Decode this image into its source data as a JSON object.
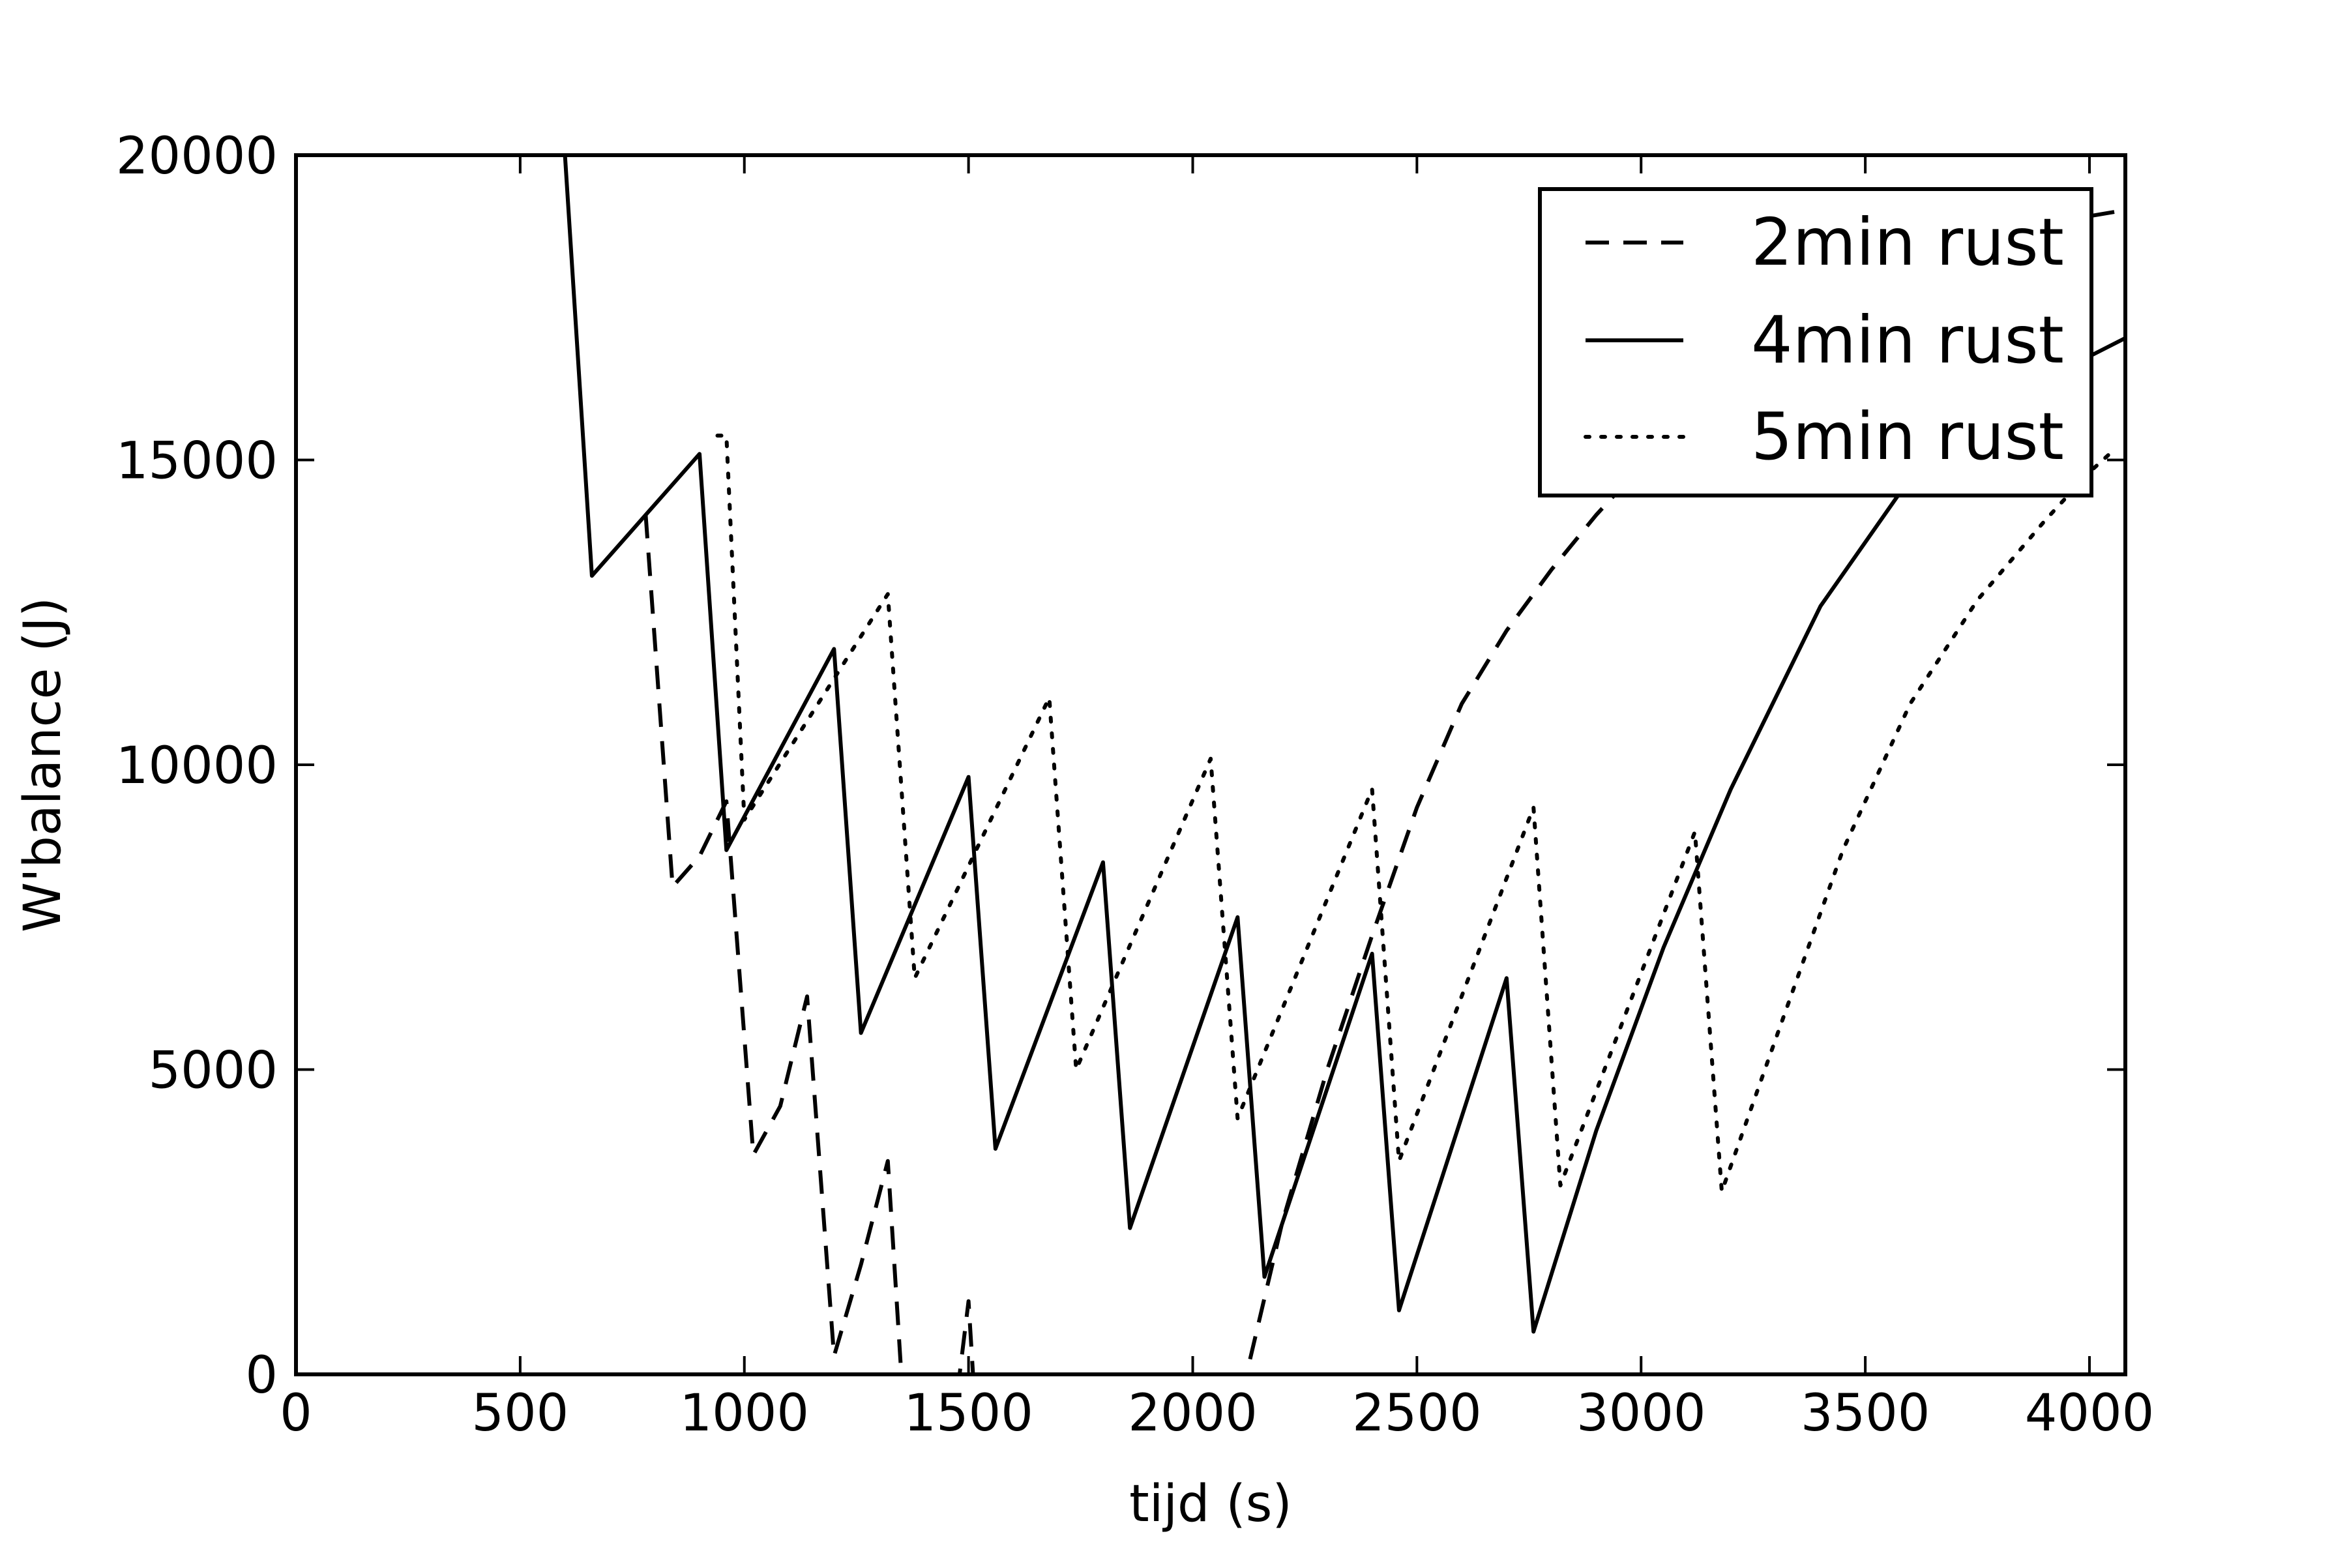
{
  "chart_data": {
    "type": "line",
    "title": "",
    "xlabel": "tijd (s)",
    "ylabel": "W'balance (J)",
    "xlim": [
      0,
      4080
    ],
    "ylim": [
      0,
      20000
    ],
    "xticks": [
      0,
      500,
      1000,
      1500,
      2000,
      2500,
      3000,
      3500,
      4000
    ],
    "yticks": [
      0,
      5000,
      10000,
      15000,
      20000
    ],
    "xtick_labels": [
      "0",
      "500",
      "1000",
      "1500",
      "2000",
      "2500",
      "3000",
      "3500",
      "4000"
    ],
    "ytick_labels": [
      "0",
      "5000",
      "10000",
      "15000",
      "20000"
    ],
    "grid": false,
    "legend_position": "top-right",
    "series": [
      {
        "name": "2min rust",
        "style": "dashed",
        "color": "#000000",
        "points": [
          [
            780,
            14100
          ],
          [
            840,
            8000
          ],
          [
            900,
            8500
          ],
          [
            960,
            9400
          ],
          [
            1020,
            3600
          ],
          [
            1080,
            4400
          ],
          [
            1140,
            6200
          ],
          [
            1200,
            300
          ],
          [
            1260,
            1800
          ],
          [
            1320,
            3500
          ],
          [
            1350,
            0
          ],
          [
            1480,
            0
          ],
          [
            1500,
            1200
          ],
          [
            1510,
            0
          ],
          [
            2120,
            0
          ],
          [
            2200,
            2500
          ],
          [
            2300,
            5000
          ],
          [
            2400,
            7200
          ],
          [
            2500,
            9300
          ],
          [
            2600,
            11000
          ],
          [
            2700,
            12200
          ],
          [
            2800,
            13200
          ],
          [
            2900,
            14100
          ],
          [
            3000,
            14900
          ],
          [
            3100,
            15600
          ],
          [
            3200,
            16200
          ],
          [
            3300,
            16800
          ],
          [
            3400,
            17300
          ],
          [
            3500,
            17700
          ],
          [
            3600,
            18100
          ],
          [
            3700,
            18400
          ],
          [
            3800,
            18700
          ],
          [
            3900,
            18900
          ],
          [
            4000,
            19000
          ],
          [
            4080,
            19100
          ]
        ]
      },
      {
        "name": "4min rust",
        "style": "solid",
        "color": "#000000",
        "points": [
          [
            0,
            20000
          ],
          [
            600,
            20000
          ],
          [
            660,
            13100
          ],
          [
            900,
            15100
          ],
          [
            960,
            8600
          ],
          [
            1200,
            11900
          ],
          [
            1260,
            5600
          ],
          [
            1500,
            9800
          ],
          [
            1560,
            3700
          ],
          [
            1800,
            8400
          ],
          [
            1860,
            2400
          ],
          [
            2100,
            7500
          ],
          [
            2160,
            1600
          ],
          [
            2400,
            6900
          ],
          [
            2460,
            1050
          ],
          [
            2700,
            6500
          ],
          [
            2760,
            700
          ],
          [
            2900,
            4000
          ],
          [
            3050,
            7000
          ],
          [
            3200,
            9600
          ],
          [
            3400,
            12600
          ],
          [
            3600,
            14700
          ],
          [
            3800,
            16100
          ],
          [
            4000,
            16700
          ],
          [
            4080,
            17000
          ]
        ]
      },
      {
        "name": "5min rust",
        "style": "dotted",
        "color": "#000000",
        "points": [
          [
            940,
            15400
          ],
          [
            960,
            15400
          ],
          [
            1000,
            9100
          ],
          [
            1320,
            12800
          ],
          [
            1380,
            6500
          ],
          [
            1680,
            11100
          ],
          [
            1740,
            5000
          ],
          [
            2040,
            10100
          ],
          [
            2100,
            4200
          ],
          [
            2400,
            9600
          ],
          [
            2460,
            3500
          ],
          [
            2760,
            9300
          ],
          [
            2820,
            3100
          ],
          [
            3120,
            8900
          ],
          [
            3180,
            3000
          ],
          [
            3300,
            5500
          ],
          [
            3450,
            8600
          ],
          [
            3600,
            11000
          ],
          [
            3750,
            12700
          ],
          [
            3900,
            14000
          ],
          [
            4000,
            14800
          ],
          [
            4060,
            15200
          ]
        ]
      }
    ]
  }
}
